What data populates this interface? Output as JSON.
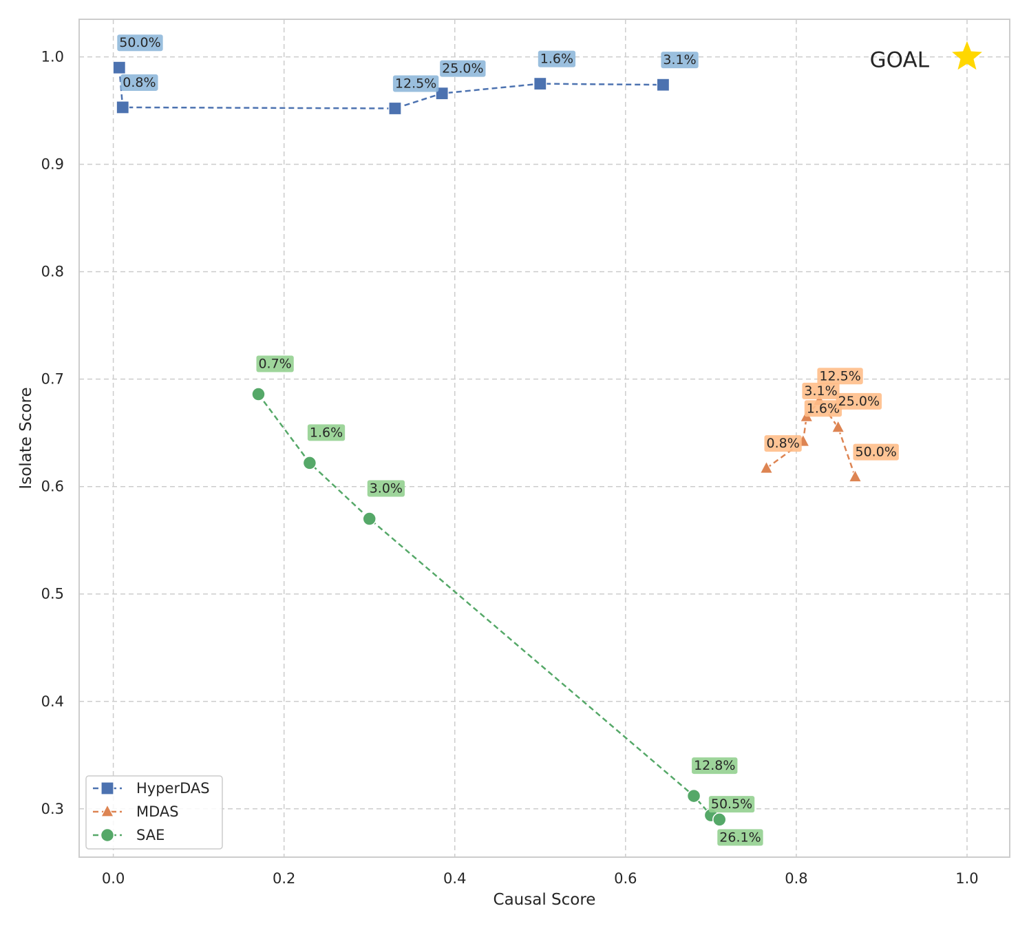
{
  "chart_data": {
    "type": "scatter",
    "xlabel": "Causal Score",
    "ylabel": "Isolate Score",
    "xlim": [
      -0.04,
      1.05
    ],
    "ylim": [
      0.255,
      1.035
    ],
    "x_ticks": [
      0.0,
      0.2,
      0.4,
      0.6,
      0.8,
      1.0
    ],
    "x_tick_labels": [
      "0.0",
      "0.2",
      "0.4",
      "0.6",
      "0.8",
      "1.0"
    ],
    "y_ticks": [
      0.3,
      0.4,
      0.5,
      0.6,
      0.7,
      0.8,
      0.9,
      1.0
    ],
    "y_tick_labels": [
      "0.3",
      "0.4",
      "0.5",
      "0.6",
      "0.7",
      "0.8",
      "0.9",
      "1.0"
    ],
    "grid": true,
    "legend_position": "bottom-left",
    "goal": {
      "label": "GOAL",
      "x": 1.0,
      "y": 1.0,
      "color": "#FFD700"
    },
    "series": [
      {
        "name": "HyperDAS",
        "marker": "square",
        "color": "#4C72B0",
        "label_bg": "#8FB8DA",
        "points": [
          {
            "x": 0.007,
            "y": 0.99,
            "label": "50.0%"
          },
          {
            "x": 0.011,
            "y": 0.953,
            "label": "0.8%"
          },
          {
            "x": 0.33,
            "y": 0.952,
            "label": "12.5%"
          },
          {
            "x": 0.385,
            "y": 0.966,
            "label": "25.0%"
          },
          {
            "x": 0.5,
            "y": 0.975,
            "label": "1.6%"
          },
          {
            "x": 0.644,
            "y": 0.974,
            "label": "3.1%"
          }
        ]
      },
      {
        "name": "MDAS",
        "marker": "triangle",
        "color": "#DD8452",
        "label_bg": "#FFBE8A",
        "points": [
          {
            "x": 0.765,
            "y": 0.617,
            "label": "0.8%"
          },
          {
            "x": 0.808,
            "y": 0.642,
            "label": ""
          },
          {
            "x": 0.812,
            "y": 0.665,
            "label": "1.6%"
          },
          {
            "x": 0.827,
            "y": 0.68,
            "label": "3.1%"
          },
          {
            "x": 0.849,
            "y": 0.655,
            "label": "25.0%"
          },
          {
            "x": 0.869,
            "y": 0.609,
            "label": "50.0%"
          }
        ],
        "extra_labels": [
          {
            "x_near": 0.827,
            "label": "12.5%"
          }
        ]
      },
      {
        "name": "SAE",
        "marker": "circle",
        "color": "#55A868",
        "label_bg": "#94D090",
        "points": [
          {
            "x": 0.17,
            "y": 0.686,
            "label": "0.7%"
          },
          {
            "x": 0.23,
            "y": 0.622,
            "label": "1.6%"
          },
          {
            "x": 0.3,
            "y": 0.57,
            "label": "3.0%"
          },
          {
            "x": 0.68,
            "y": 0.312,
            "label": "12.8%"
          },
          {
            "x": 0.7,
            "y": 0.294,
            "label": "50.5%"
          },
          {
            "x": 0.71,
            "y": 0.29,
            "label": "26.1%"
          }
        ]
      }
    ]
  }
}
